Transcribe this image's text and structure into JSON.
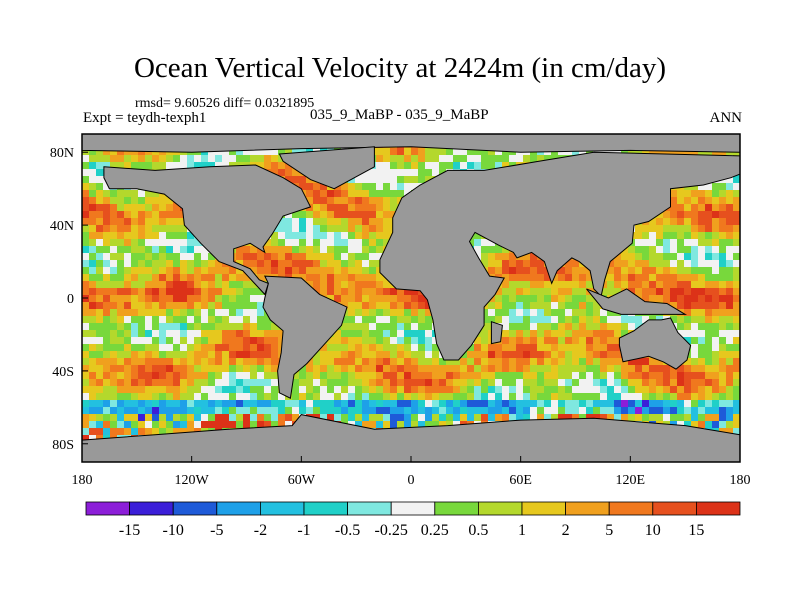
{
  "chart_data": {
    "type": "heatmap",
    "title": "Ocean Vertical Velocity at 2424m (in cm/day)",
    "stats_line": "rmsd= 9.60526 diff= 0.0321895",
    "expt_line": "Expt = teydh-texph1",
    "cases_line": "035_9_MaBP - 035_9_MaBP",
    "season": "ANN",
    "x_range": [
      -180,
      180
    ],
    "y_range": [
      -90,
      90
    ],
    "x_ticks": [
      {
        "value": -180,
        "label": "180"
      },
      {
        "value": -120,
        "label": "120W"
      },
      {
        "value": -60,
        "label": "60W"
      },
      {
        "value": 0,
        "label": "0"
      },
      {
        "value": 60,
        "label": "60E"
      },
      {
        "value": 120,
        "label": "120E"
      },
      {
        "value": 180,
        "label": "180"
      }
    ],
    "y_ticks": [
      {
        "value": 80,
        "label": "80N"
      },
      {
        "value": 40,
        "label": "40N"
      },
      {
        "value": 0,
        "label": "0"
      },
      {
        "value": -40,
        "label": "40S"
      },
      {
        "value": -80,
        "label": "80S"
      }
    ],
    "land_color": "#999999",
    "colorbar": {
      "levels": [
        "-15",
        "-10",
        "-5",
        "-2",
        "-1",
        "-0.5",
        "-0.25",
        "0.25",
        "0.5",
        "1",
        "2",
        "5",
        "10",
        "15"
      ],
      "colors": [
        "#8c1ed8",
        "#3b1ed8",
        "#1e5ad8",
        "#1ea0e8",
        "#23c0e0",
        "#20d0c8",
        "#7fe8e0",
        "#f2f2f2",
        "#78d83c",
        "#b4d82c",
        "#e6c81e",
        "#f0a01e",
        "#f0781e",
        "#e6501e",
        "#dc3218"
      ]
    }
  }
}
